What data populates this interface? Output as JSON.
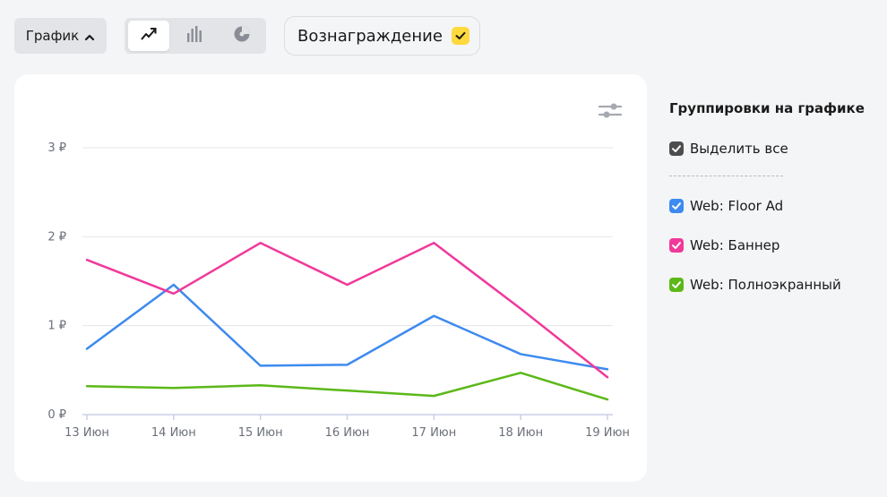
{
  "toolbar": {
    "graph_label": "График",
    "chart_types": [
      {
        "icon": "line-chart-icon",
        "active": true
      },
      {
        "icon": "bar-chart-icon",
        "active": false
      },
      {
        "icon": "pie-chart-icon",
        "active": false
      }
    ],
    "reward_label": "Вознаграждение",
    "reward_checked": true,
    "reward_color": "#ffd93d"
  },
  "panel": {
    "title": "Группировки на графике",
    "select_all_label": "Выделить все",
    "select_all_color": "#4d4d4d",
    "items": [
      {
        "label": "Web: Floor Ad",
        "color": "#3d8af0",
        "checked": true
      },
      {
        "label": "Web: Баннер",
        "color": "#f0399a",
        "checked": true
      },
      {
        "label": "Web: Полноэкранный",
        "color": "#5cb818",
        "checked": true
      }
    ]
  },
  "chart_data": {
    "type": "line",
    "x": [
      "13 Июн",
      "14 Июн",
      "15 Июн",
      "16 Июн",
      "17 Июн",
      "18 Июн",
      "19 Июн"
    ],
    "yticks": [
      "0 ₽",
      "1 ₽",
      "2 ₽",
      "3 ₽"
    ],
    "ylim": [
      0,
      3
    ],
    "grid": true,
    "series": [
      {
        "name": "Web: Floor Ad",
        "color": "#3d8af0",
        "values": [
          0.74,
          1.46,
          0.55,
          0.56,
          1.11,
          0.68,
          0.51
        ]
      },
      {
        "name": "Web: Баннер",
        "color": "#f0399a",
        "values": [
          1.74,
          1.36,
          1.93,
          1.46,
          1.93,
          1.19,
          0.42
        ]
      },
      {
        "name": "Web: Полноэкранный",
        "color": "#5cb818",
        "values": [
          0.32,
          0.3,
          0.33,
          0.27,
          0.21,
          0.47,
          0.17
        ]
      }
    ]
  }
}
